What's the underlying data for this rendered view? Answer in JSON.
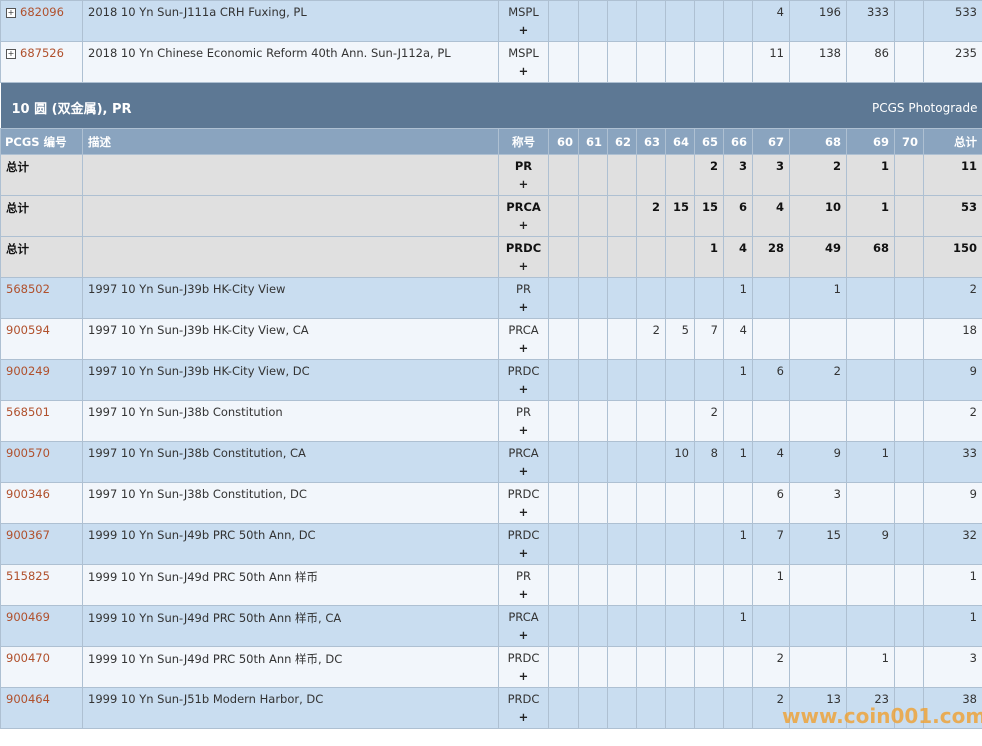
{
  "top_rows": [
    {
      "id": "682096",
      "description": "2018 10 Yn Sun-J111a CRH Fuxing, PL",
      "designation": "MSPL",
      "plus": "+",
      "grades": [
        null,
        null,
        null,
        null,
        null,
        null,
        null,
        4,
        196,
        333,
        null
      ],
      "total": 533
    },
    {
      "id": "687526",
      "description": "2018 10 Yn Chinese Economic Reform 40th Ann. Sun-J112a, PL",
      "designation": "MSPL",
      "plus": "+",
      "grades": [
        null,
        null,
        null,
        null,
        null,
        null,
        null,
        11,
        138,
        86,
        null
      ],
      "total": 235
    }
  ],
  "section": {
    "title": "10 圆 (双金属), PR",
    "photograde": "PCGS Photograde"
  },
  "header": {
    "id": "PCGS 编号",
    "description": "描述",
    "designation": "称号",
    "grades": [
      60,
      61,
      62,
      63,
      64,
      65,
      66,
      67,
      68,
      69,
      70
    ],
    "total": "总计"
  },
  "total_rows": [
    {
      "label": "总计",
      "designation": "PR",
      "plus": "+",
      "grades": [
        null,
        null,
        null,
        null,
        null,
        2,
        3,
        3,
        2,
        1,
        null
      ],
      "total": 11
    },
    {
      "label": "总计",
      "designation": "PRCA",
      "plus": "+",
      "grades": [
        null,
        null,
        null,
        2,
        15,
        15,
        6,
        4,
        10,
        1,
        null
      ],
      "total": 53
    },
    {
      "label": "总计",
      "designation": "PRDC",
      "plus": "+",
      "grades": [
        null,
        null,
        null,
        null,
        null,
        1,
        4,
        28,
        49,
        68,
        null
      ],
      "total": 150
    }
  ],
  "rows": [
    {
      "id": "568502",
      "description": "1997 10 Yn Sun-J39b HK-City View",
      "designation": "PR",
      "plus": "+",
      "grades": [
        null,
        null,
        null,
        null,
        null,
        null,
        1,
        null,
        1,
        null,
        null
      ],
      "total": 2
    },
    {
      "id": "900594",
      "description": "1997 10 Yn Sun-J39b HK-City View, CA",
      "designation": "PRCA",
      "plus": "+",
      "grades": [
        null,
        null,
        null,
        2,
        5,
        7,
        4,
        null,
        null,
        null,
        null
      ],
      "total": 18
    },
    {
      "id": "900249",
      "description": "1997 10 Yn Sun-J39b HK-City View, DC",
      "designation": "PRDC",
      "plus": "+",
      "grades": [
        null,
        null,
        null,
        null,
        null,
        null,
        1,
        6,
        2,
        null,
        null
      ],
      "total": 9
    },
    {
      "id": "568501",
      "description": "1997 10 Yn Sun-J38b Constitution",
      "designation": "PR",
      "plus": "+",
      "grades": [
        null,
        null,
        null,
        null,
        null,
        2,
        null,
        null,
        null,
        null,
        null
      ],
      "total": 2
    },
    {
      "id": "900570",
      "description": "1997 10 Yn Sun-J38b Constitution, CA",
      "designation": "PRCA",
      "plus": "+",
      "grades": [
        null,
        null,
        null,
        null,
        10,
        8,
        1,
        4,
        9,
        1,
        null
      ],
      "total": 33
    },
    {
      "id": "900346",
      "description": "1997 10 Yn Sun-J38b Constitution, DC",
      "designation": "PRDC",
      "plus": "+",
      "grades": [
        null,
        null,
        null,
        null,
        null,
        null,
        null,
        6,
        3,
        null,
        null
      ],
      "total": 9
    },
    {
      "id": "900367",
      "description": "1999 10 Yn Sun-J49b PRC 50th Ann, DC",
      "designation": "PRDC",
      "plus": "+",
      "grades": [
        null,
        null,
        null,
        null,
        null,
        null,
        1,
        7,
        15,
        9,
        null
      ],
      "total": 32
    },
    {
      "id": "515825",
      "description": "1999 10 Yn Sun-J49d PRC 50th Ann 样币",
      "designation": "PR",
      "plus": "+",
      "grades": [
        null,
        null,
        null,
        null,
        null,
        null,
        null,
        1,
        null,
        null,
        null
      ],
      "total": 1
    },
    {
      "id": "900469",
      "description": "1999 10 Yn Sun-J49d PRC 50th Ann 样币, CA",
      "designation": "PRCA",
      "plus": "+",
      "grades": [
        null,
        null,
        null,
        null,
        null,
        null,
        1,
        null,
        null,
        null,
        null
      ],
      "total": 1
    },
    {
      "id": "900470",
      "description": "1999 10 Yn Sun-J49d PRC 50th Ann 样币, DC",
      "designation": "PRDC",
      "plus": "+",
      "grades": [
        null,
        null,
        null,
        null,
        null,
        null,
        null,
        2,
        null,
        1,
        null
      ],
      "total": 3
    },
    {
      "id": "900464",
      "description": "1999 10 Yn Sun-J51b Modern Harbor, DC",
      "designation": "PRDC",
      "plus": "+",
      "grades": [
        null,
        null,
        null,
        null,
        null,
        null,
        null,
        2,
        13,
        23,
        null
      ],
      "total": 38
    }
  ],
  "watermark": "www.coin001.com"
}
